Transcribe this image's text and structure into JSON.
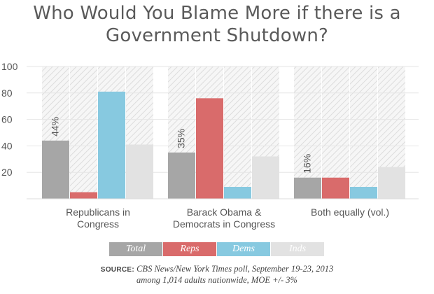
{
  "chart_data": {
    "type": "bar",
    "title_line1": "Who Would You Blame More if there is a",
    "title_line2": "Government Shutdown?",
    "categories": [
      [
        "Republicans in",
        "Congress"
      ],
      [
        "Barack Obama &",
        "Democrats in Congress"
      ],
      [
        "Both equally (vol.)"
      ]
    ],
    "series": [
      {
        "name": "Total",
        "color": "#a6a6a6",
        "values": [
          44,
          35,
          16
        ]
      },
      {
        "name": "Reps",
        "color": "#d96b6b",
        "values": [
          5,
          76,
          16
        ]
      },
      {
        "name": "Dems",
        "color": "#87c9e0",
        "values": [
          81,
          9,
          9
        ]
      },
      {
        "name": "Inds",
        "color": "#e2e2e2",
        "values": [
          41,
          32,
          24
        ]
      }
    ],
    "data_labels": [
      "44%",
      "35%",
      "16%"
    ],
    "ylim": [
      0,
      100
    ],
    "yticks": [
      20,
      40,
      60,
      80,
      100
    ],
    "grid": true,
    "legend_position": "bottom"
  },
  "source": {
    "label": "SOURCE:",
    "text": "CBS News/New York Times poll, September 19-23, 2013",
    "line2": "among 1,014 adults nationwide, MOE +/- 3%"
  }
}
